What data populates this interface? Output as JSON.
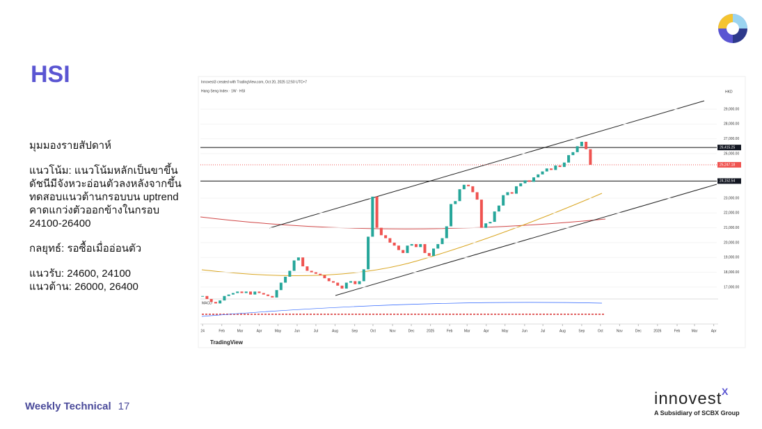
{
  "header": {
    "title": "HSI"
  },
  "commentary": {
    "heading": "มุมมองรายสัปดาห์",
    "trend": "แนวโน้ม: แนวโน้มหลักเป็นขาขึ้น ดัชนีมีจังหวะอ่อนตัวลงหลังจากขึ้นทดสอบแนวต้านกรอบบน uptrend คาดแกว่งตัวออกข้างในกรอบ 24100-26400",
    "strategy": "กลยุทธ์: รอซื้อเมื่ออ่อนตัว",
    "support": "แนวรับ: 24600, 24100",
    "resistance": "แนวต้าน: 26000, 26400"
  },
  "chart": {
    "type": "candlestick",
    "credit": "Innovest3 created with TradingView.com, Oct 20, 2025 12:50 UTC+7",
    "symbol": "Hang Seng Index · 1W · HSI",
    "currency": "HKD",
    "brand": "TradingView",
    "macd_label": "MACD",
    "ylim": [
      16200,
      30500
    ],
    "yticks": [
      {
        "value": 29000,
        "label": "29,000.00"
      },
      {
        "value": 28000,
        "label": "28,000.00"
      },
      {
        "value": 27000,
        "label": "27,000.00"
      },
      {
        "value": 26000,
        "label": "26,000.00"
      },
      {
        "value": 23000,
        "label": "23,000.00"
      },
      {
        "value": 22000,
        "label": "22,000.00"
      },
      {
        "value": 21000,
        "label": "21,000.00"
      },
      {
        "value": 20000,
        "label": "20,000.00"
      },
      {
        "value": 19000,
        "label": "19,000.00"
      },
      {
        "value": 18000,
        "label": "18,000.00"
      },
      {
        "value": 17000,
        "label": "17,000.00"
      }
    ],
    "xlim": [
      -0.5,
      118
    ],
    "xticks": [
      {
        "value": 0,
        "label": "24"
      },
      {
        "value": 4.4,
        "label": "Feb"
      },
      {
        "value": 8.6,
        "label": "Mar"
      },
      {
        "value": 13,
        "label": "Apr"
      },
      {
        "value": 17.3,
        "label": "May"
      },
      {
        "value": 21.7,
        "label": "Jun"
      },
      {
        "value": 26,
        "label": "Jul"
      },
      {
        "value": 30.4,
        "label": "Aug"
      },
      {
        "value": 34.9,
        "label": "Sep"
      },
      {
        "value": 39.1,
        "label": "Oct"
      },
      {
        "value": 43.6,
        "label": "Nov"
      },
      {
        "value": 47.9,
        "label": "Dec"
      },
      {
        "value": 52.3,
        "label": "2025"
      },
      {
        "value": 56.7,
        "label": "Feb"
      },
      {
        "value": 60.7,
        "label": "Mar"
      },
      {
        "value": 65.1,
        "label": "Apr"
      },
      {
        "value": 69.4,
        "label": "May"
      },
      {
        "value": 73.9,
        "label": "Jun"
      },
      {
        "value": 78.1,
        "label": "Jul"
      },
      {
        "value": 82.6,
        "label": "Aug"
      },
      {
        "value": 87,
        "label": "Sep"
      },
      {
        "value": 91.3,
        "label": "Oct"
      },
      {
        "value": 95.7,
        "label": "Nov"
      },
      {
        "value": 100,
        "label": "Dec"
      },
      {
        "value": 104.4,
        "label": "2026"
      },
      {
        "value": 108.9,
        "label": "Feb"
      },
      {
        "value": 112.9,
        "label": "Mar"
      },
      {
        "value": 117.3,
        "label": "Apr"
      }
    ],
    "closes": [
      16400,
      16200,
      16000,
      15900,
      16100,
      16400,
      16500,
      16600,
      16700,
      16600,
      16700,
      16500,
      16700,
      16600,
      16500,
      16400,
      16300,
      16800,
      17300,
      17700,
      18100,
      18800,
      19000,
      18400,
      18100,
      18000,
      17900,
      17800,
      17600,
      17400,
      17300,
      17100,
      16900,
      17300,
      17400,
      17200,
      17400,
      18200,
      20400,
      23100,
      21000,
      20500,
      20300,
      20000,
      19800,
      19500,
      19300,
      19800,
      19900,
      19700,
      19900,
      19300,
      19100,
      19600,
      19900,
      20300,
      21100,
      22600,
      22800,
      23600,
      23900,
      23800,
      23400,
      22900,
      21000,
      21300,
      21400,
      22100,
      22500,
      23200,
      23400,
      23300,
      23800,
      24000,
      24200,
      24100,
      24400,
      24600,
      24800,
      25000,
      24900,
      25200,
      25100,
      25400,
      25900,
      26100,
      26500,
      26800,
      26300,
      25250
    ],
    "levels": [
      {
        "value": 26415.25,
        "label": "26,415.25"
      },
      {
        "value": 24152.54,
        "label": "24,152.54"
      }
    ],
    "current": {
      "value": 25247.18,
      "label": "25,247.18"
    }
  },
  "footer": {
    "section": "Weekly Technical",
    "page": "17",
    "brand": "innovest",
    "brand_mark": "X",
    "tagline": "A Subsidiary of SCBX Group"
  }
}
